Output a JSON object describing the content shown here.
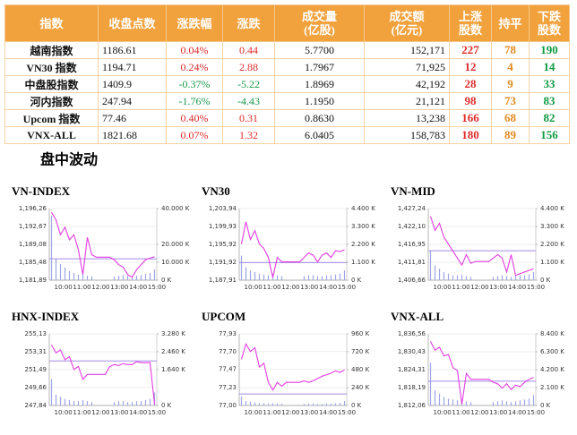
{
  "table": {
    "header": [
      "指数",
      "收盘点数",
      "涨跌幅",
      "涨跌",
      "成交量\n(亿股)",
      "成交额\n(亿元)",
      "上涨\n股数",
      "持平",
      "下跌\n股数"
    ],
    "rows": [
      [
        "越南指数",
        "1186.61",
        "0.04%",
        "0.44",
        "5.7700",
        "152,171",
        "227",
        "78",
        "190"
      ],
      [
        "VN30 指数",
        "1194.71",
        "0.24%",
        "2.88",
        "1.7967",
        "71,925",
        "12",
        "4",
        "14"
      ],
      [
        "中盘股指数",
        "1409.9",
        "-0.37%",
        "-5.22",
        "1.8969",
        "42,192",
        "28",
        "9",
        "33"
      ],
      [
        "河内指数",
        "247.94",
        "-1.76%",
        "-4.43",
        "1.1950",
        "21,121",
        "98",
        "73",
        "83"
      ],
      [
        "Upcom 指数",
        "77.46",
        "0.40%",
        "0.31",
        "0.8630",
        "13,238",
        "166",
        "68",
        "82"
      ],
      [
        "VNX-ALL",
        "1821.68",
        "0.07%",
        "1.32",
        "6.0405",
        "158,783",
        "180",
        "89",
        "156"
      ]
    ]
  },
  "section_title": "盘中波动",
  "charts": [
    {
      "title": "VN-INDEX",
      "ylim": [
        1181.89,
        1196.26
      ],
      "yticks": [
        {
          "value": 1196.26,
          "label": "1,196,26"
        },
        {
          "value": 1192.67,
          "label": "1,192,67"
        },
        {
          "value": 1189.08,
          "label": "1,189,08"
        },
        {
          "value": 1185.48,
          "label": "1,185,48"
        },
        {
          "value": 1181.89,
          "label": "1,181,89"
        }
      ],
      "y2lim": [
        0,
        40000
      ],
      "y2ticks": [
        {
          "value": 40000,
          "label": "40.000 K"
        },
        {
          "value": 20000,
          "label": "20.000 K"
        },
        {
          "value": 10000,
          "label": "10.000 K"
        },
        {
          "value": 0,
          "label": "0 K"
        }
      ],
      "xticks": [
        "10:00",
        "11:00",
        "12:00",
        "13:00",
        "14:00",
        "15:00"
      ],
      "reference": 1186.17,
      "price": [
        1195.5,
        1194,
        1191,
        1192.5,
        1190,
        1191,
        1188,
        1183,
        1190.5,
        1187,
        1186.5,
        1186.5,
        1186.5,
        1186.5,
        1186,
        1185,
        1184.5,
        1183,
        1182.5,
        1184,
        1185,
        1186,
        1186.3,
        1186.6
      ],
      "volume": [
        36000,
        12000,
        9000,
        7000,
        5000,
        4000,
        3000,
        3500,
        2500,
        2000,
        0,
        0,
        0,
        0,
        2000,
        2500,
        3000,
        2500,
        2000,
        2500,
        3000,
        3500,
        4000,
        6000
      ]
    },
    {
      "title": "VN30",
      "ylim": [
        1187.91,
        1203.94
      ],
      "yticks": [
        {
          "value": 1203.94,
          "label": "1,203,94"
        },
        {
          "value": 1199.93,
          "label": "1,199,93"
        },
        {
          "value": 1195.92,
          "label": "1,195,92"
        },
        {
          "value": 1191.92,
          "label": "1,191,92"
        },
        {
          "value": 1187.91,
          "label": "1,187,91"
        }
      ],
      "y2lim": [
        0,
        4400
      ],
      "y2ticks": [
        {
          "value": 4400,
          "label": "4.400 K"
        },
        {
          "value": 3300,
          "label": "3.300 K"
        },
        {
          "value": 2200,
          "label": "2.200 K"
        },
        {
          "value": 1100,
          "label": "1.100 K"
        },
        {
          "value": 0,
          "label": "0 K"
        }
      ],
      "xticks": [
        "10:00",
        "11:00",
        "12:00",
        "13:00",
        "14:00",
        "15:00"
      ],
      "reference": 1191.83,
      "price": [
        1196,
        1201,
        1197,
        1199,
        1196,
        1195,
        1193,
        1188.5,
        1193,
        1192,
        1192,
        1192,
        1192,
        1192,
        1193,
        1194,
        1193.5,
        1192,
        1193.5,
        1194,
        1193,
        1194.5,
        1194.3,
        1194.7
      ],
      "volume": [
        1500,
        800,
        600,
        500,
        400,
        350,
        300,
        400,
        300,
        250,
        0,
        0,
        0,
        0,
        250,
        300,
        300,
        250,
        250,
        300,
        300,
        350,
        400,
        600
      ]
    },
    {
      "title": "VN-MID",
      "ylim": [
        1406.66,
        1427.24
      ],
      "yticks": [
        {
          "value": 1427.24,
          "label": "1,427,24"
        },
        {
          "value": 1422.1,
          "label": "1,422,10"
        },
        {
          "value": 1416.95,
          "label": "1,416,95"
        },
        {
          "value": 1411.81,
          "label": "1,411,81"
        },
        {
          "value": 1406.66,
          "label": "1,406,66"
        }
      ],
      "y2lim": [
        0,
        4400
      ],
      "y2ticks": [
        {
          "value": 4400,
          "label": "4.400 K"
        },
        {
          "value": 3300,
          "label": "3.300 K"
        },
        {
          "value": 2200,
          "label": "2.200 K"
        },
        {
          "value": 1100,
          "label": "1.100 K"
        },
        {
          "value": 0,
          "label": "0 K"
        }
      ],
      "xticks": [
        "10:00",
        "11:00",
        "12:00",
        "13:00",
        "14:00",
        "15:00"
      ],
      "reference": 1415.12,
      "price": [
        1425,
        1421,
        1423,
        1419,
        1417,
        1415,
        1413,
        1411,
        1414,
        1411.5,
        1412,
        1412,
        1412,
        1412,
        1413,
        1414,
        1413,
        1409,
        1414,
        1408,
        1408.5,
        1409,
        1409.5,
        1409.9
      ],
      "volume": [
        1800,
        900,
        700,
        500,
        400,
        300,
        300,
        350,
        250,
        200,
        0,
        0,
        0,
        0,
        200,
        250,
        300,
        250,
        200,
        250,
        300,
        300,
        350,
        500
      ]
    },
    {
      "title": "HNX-INDEX",
      "ylim": [
        247.84,
        255.13
      ],
      "yticks": [
        {
          "value": 255.13,
          "label": "255,13"
        },
        {
          "value": 253.31,
          "label": "253,31"
        },
        {
          "value": 251.49,
          "label": "251,49"
        },
        {
          "value": 249.66,
          "label": "249,66"
        },
        {
          "value": 247.84,
          "label": "247,84"
        }
      ],
      "y2lim": [
        0,
        3280
      ],
      "y2ticks": [
        {
          "value": 3280,
          "label": "3.280 K"
        },
        {
          "value": 2460,
          "label": "2.460 K"
        },
        {
          "value": 1640,
          "label": "1.640 K"
        },
        {
          "value": 0,
          "label": "0 K"
        }
      ],
      "xticks": [
        "10:00",
        "11:00",
        "12:00",
        "13:00",
        "14:00",
        "15:00"
      ],
      "reference": 252.37,
      "price": [
        254,
        253.2,
        253.5,
        252.5,
        252.8,
        251.5,
        251.8,
        250.5,
        251,
        251,
        251,
        251,
        251,
        251.8,
        252,
        251.9,
        252.1,
        252,
        252,
        252.3,
        252.2,
        252.2,
        252.2,
        247.94
      ],
      "volume": [
        1200,
        500,
        400,
        300,
        250,
        200,
        200,
        250,
        200,
        150,
        0,
        0,
        0,
        0,
        150,
        200,
        200,
        150,
        150,
        200,
        200,
        250,
        300,
        600
      ]
    },
    {
      "title": "UPCOM",
      "ylim": [
        77.0,
        77.93
      ],
      "yticks": [
        {
          "value": 77.93,
          "label": "77,93"
        },
        {
          "value": 77.7,
          "label": "77,70"
        },
        {
          "value": 77.47,
          "label": "77,47"
        },
        {
          "value": 77.23,
          "label": "77,23"
        },
        {
          "value": 77.0,
          "label": "77,00"
        }
      ],
      "y2lim": [
        0,
        960
      ],
      "y2ticks": [
        {
          "value": 960,
          "label": "960 K"
        },
        {
          "value": 720,
          "label": "720 K"
        },
        {
          "value": 480,
          "label": "480 K"
        },
        {
          "value": 240,
          "label": "240 K"
        },
        {
          "value": 0,
          "label": "0 K"
        }
      ],
      "xticks": [
        "10:00",
        "11:00",
        "12:00",
        "13:00",
        "14:00",
        "15:00"
      ],
      "reference": 77.15,
      "price": [
        77.6,
        77.8,
        77.7,
        77.75,
        77.5,
        77.55,
        77.3,
        77.2,
        77.3,
        77.25,
        77.3,
        77.3,
        77.3,
        77.3,
        77.32,
        77.3,
        77.32,
        77.35,
        77.38,
        77.4,
        77.42,
        77.45,
        77.43,
        77.46
      ],
      "volume": [
        120,
        60,
        50,
        40,
        30,
        30,
        25,
        30,
        25,
        20,
        0,
        0,
        0,
        0,
        20,
        25,
        25,
        20,
        20,
        25,
        25,
        30,
        35,
        60
      ]
    },
    {
      "title": "VNX-ALL",
      "ylim": [
        1812.06,
        1836.56
      ],
      "yticks": [
        {
          "value": 1836.56,
          "label": "1,836,56"
        },
        {
          "value": 1830.43,
          "label": "1,830,43"
        },
        {
          "value": 1824.31,
          "label": "1,824,31"
        },
        {
          "value": 1818.19,
          "label": "1,818,19"
        },
        {
          "value": 1812.06,
          "label": "1,812,06"
        }
      ],
      "y2lim": [
        0,
        8400
      ],
      "y2ticks": [
        {
          "value": 8400,
          "label": "8.400 K"
        },
        {
          "value": 6300,
          "label": "6.300 K"
        },
        {
          "value": 4200,
          "label": "4.200 K"
        },
        {
          "value": 2100,
          "label": "2.100 K"
        },
        {
          "value": 0,
          "label": "0 K"
        }
      ],
      "xticks": [
        "10:00",
        "11:00",
        "12:00",
        "13:00",
        "14:00",
        "15:00"
      ],
      "reference": 1820.36,
      "price": [
        1834,
        1831,
        1832,
        1829,
        1829.5,
        1825,
        1824,
        1812.5,
        1823,
        1821,
        1821,
        1821,
        1821,
        1821,
        1820,
        1819.5,
        1818,
        1819.5,
        1817.5,
        1819,
        1818.5,
        1820,
        1821,
        1821.68
      ],
      "volume": [
        5000,
        1800,
        1400,
        1000,
        800,
        700,
        600,
        700,
        500,
        400,
        0,
        0,
        0,
        0,
        400,
        500,
        600,
        500,
        400,
        500,
        600,
        700,
        800,
        1200
      ]
    }
  ]
}
